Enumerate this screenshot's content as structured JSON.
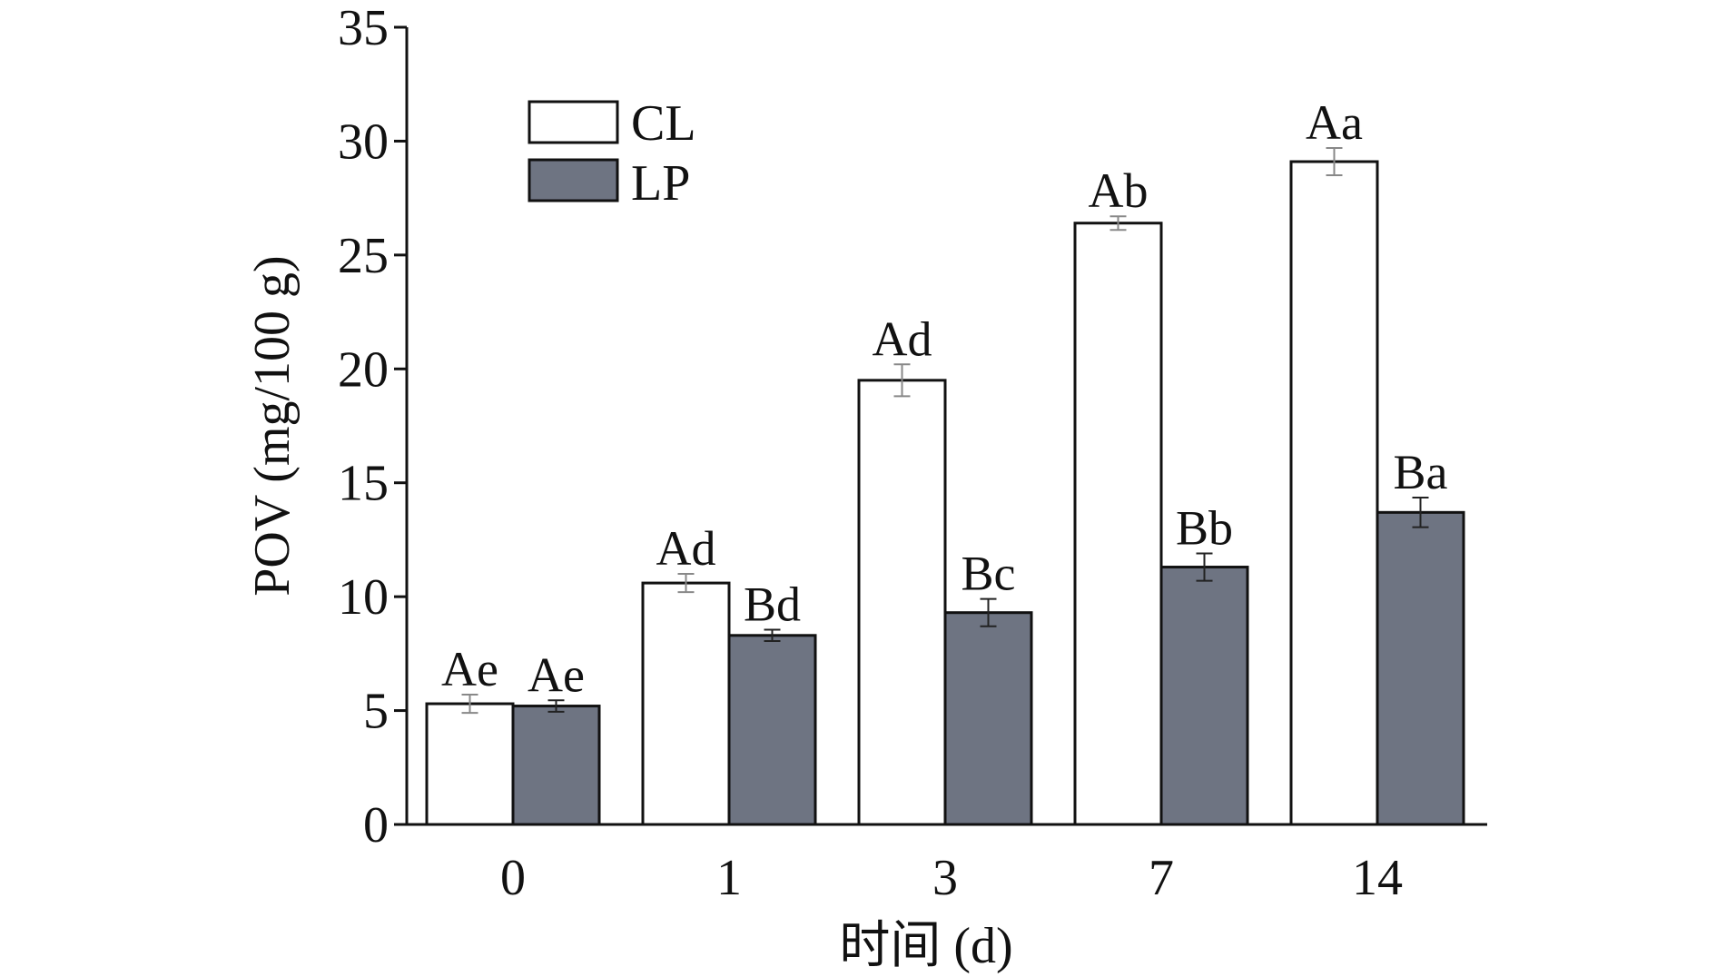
{
  "chart_data": {
    "type": "bar",
    "categories": [
      "0",
      "1",
      "3",
      "7",
      "14"
    ],
    "series": [
      {
        "name": "CL",
        "values": [
          5.3,
          10.6,
          19.5,
          26.4,
          29.1
        ],
        "errors": [
          0.4,
          0.4,
          0.7,
          0.3,
          0.6
        ],
        "labels": [
          "Ae",
          "Ad",
          "Ad",
          "Ab",
          "Aa"
        ],
        "color": "#ffffff"
      },
      {
        "name": "LP",
        "values": [
          5.2,
          8.3,
          9.3,
          11.3,
          13.7
        ],
        "errors": [
          0.25,
          0.25,
          0.6,
          0.6,
          0.65
        ],
        "labels": [
          "Ae",
          "Bd",
          "Bc",
          "Bb",
          "Ba"
        ],
        "color": "#6e7482"
      }
    ],
    "xlabel": "时间 (d)",
    "ylabel": "POV (mg/100 g)",
    "ylim": [
      0,
      35
    ],
    "yticks": [
      0,
      5,
      10,
      15,
      20,
      25,
      30,
      35
    ],
    "legend_position": "top-left",
    "grid": false
  }
}
